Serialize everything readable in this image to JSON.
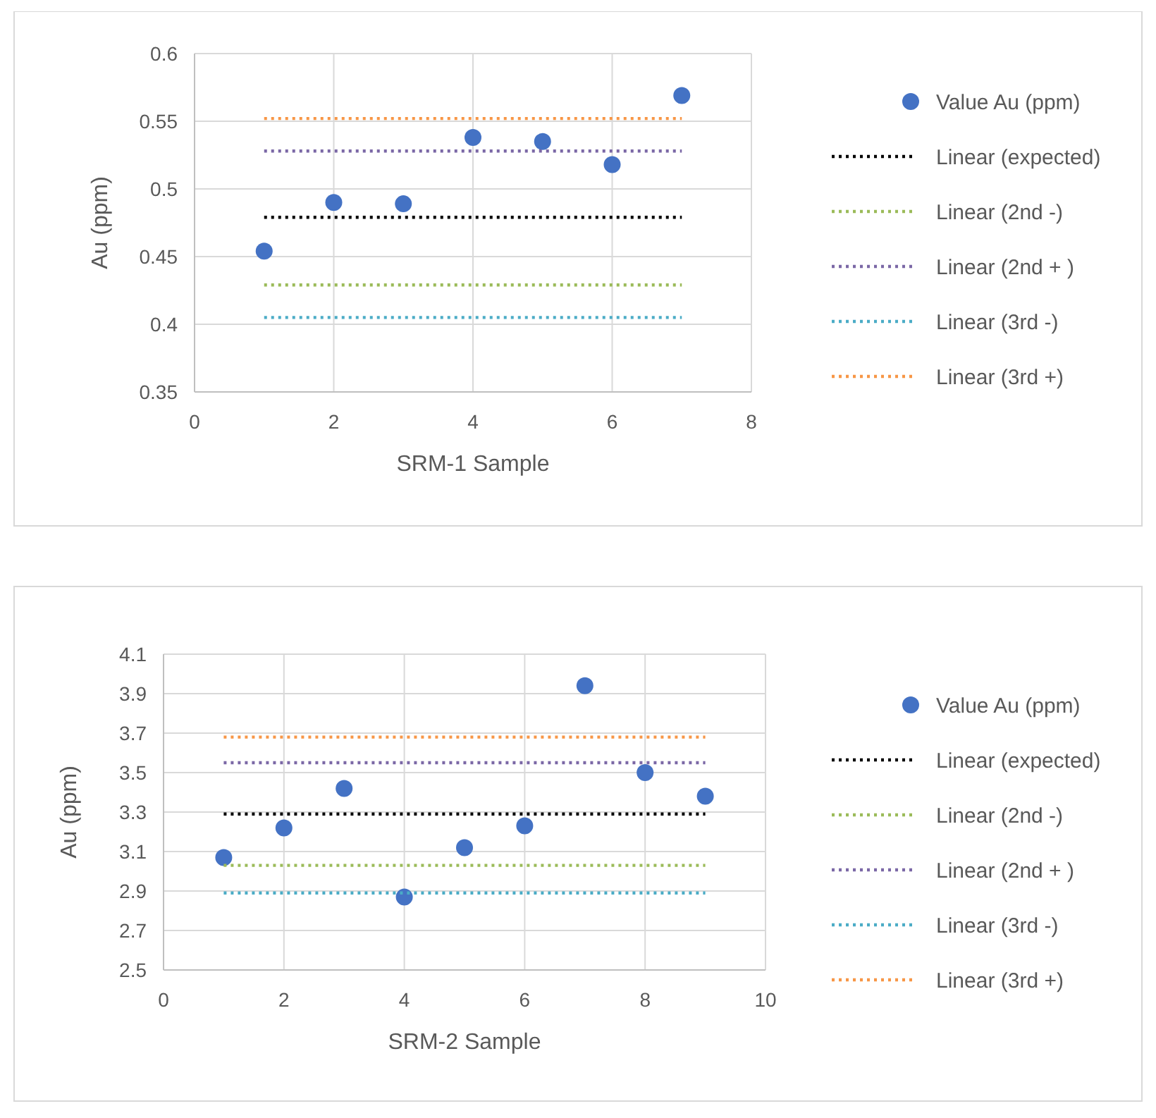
{
  "chart_data": [
    {
      "type": "scatter",
      "xlabel": "SRM-1 Sample",
      "ylabel": "Au (ppm)",
      "xlim": [
        0,
        8
      ],
      "xticks": [
        0,
        2,
        4,
        6,
        8
      ],
      "ylim": [
        0.35,
        0.6
      ],
      "yticks": [
        0.35,
        0.4,
        0.45,
        0.5,
        0.55,
        0.6
      ],
      "grid": true,
      "legend": "right",
      "series": [
        {
          "name": "Value Au (ppm)",
          "marker": "circle",
          "color": "#4472c4",
          "x": [
            1,
            2,
            3,
            4,
            5,
            6,
            7
          ],
          "values": [
            0.454,
            0.49,
            0.489,
            0.538,
            0.535,
            0.518,
            0.569
          ]
        },
        {
          "name": "Linear (expected)",
          "type": "line",
          "marker": "none",
          "line_style": "dotted",
          "color": "#000000",
          "x": [
            1,
            7
          ],
          "values": [
            0.479,
            0.479
          ]
        },
        {
          "name": "Linear (2nd -)",
          "type": "line",
          "marker": "none",
          "line_style": "dotted",
          "color": "#9bbb59",
          "x": [
            1,
            7
          ],
          "values": [
            0.429,
            0.429
          ]
        },
        {
          "name": "Linear (2nd + )",
          "type": "line",
          "marker": "none",
          "line_style": "dotted",
          "color": "#7b68a6",
          "x": [
            1,
            7
          ],
          "values": [
            0.528,
            0.528
          ]
        },
        {
          "name": "Linear (3rd -)",
          "type": "line",
          "marker": "none",
          "line_style": "dotted",
          "color": "#4bacc6",
          "x": [
            1,
            7
          ],
          "values": [
            0.405,
            0.405
          ]
        },
        {
          "name": "Linear (3rd +)",
          "type": "line",
          "marker": "none",
          "line_style": "dotted",
          "color": "#f79646",
          "x": [
            1,
            7
          ],
          "values": [
            0.552,
            0.552
          ]
        }
      ]
    },
    {
      "type": "scatter",
      "xlabel": "SRM-2 Sample",
      "ylabel": "Au (ppm)",
      "xlim": [
        0,
        10
      ],
      "xticks": [
        0,
        2,
        4,
        6,
        8,
        10
      ],
      "ylim": [
        2.5,
        4.1
      ],
      "yticks": [
        2.5,
        2.7,
        2.9,
        3.1,
        3.3,
        3.5,
        3.7,
        3.9,
        4.1
      ],
      "grid": true,
      "legend": "right",
      "series": [
        {
          "name": "Value Au (ppm)",
          "marker": "circle",
          "color": "#4472c4",
          "x": [
            1,
            2,
            3,
            4,
            5,
            6,
            7,
            8,
            9
          ],
          "values": [
            3.07,
            3.22,
            3.42,
            2.87,
            3.12,
            3.23,
            3.94,
            3.5,
            3.38
          ]
        },
        {
          "name": "Linear (expected)",
          "type": "line",
          "marker": "none",
          "line_style": "dotted",
          "color": "#000000",
          "x": [
            1,
            9
          ],
          "values": [
            3.29,
            3.29
          ]
        },
        {
          "name": "Linear (2nd -)",
          "type": "line",
          "marker": "none",
          "line_style": "dotted",
          "color": "#9bbb59",
          "x": [
            1,
            9
          ],
          "values": [
            3.03,
            3.03
          ]
        },
        {
          "name": "Linear (2nd + )",
          "type": "line",
          "marker": "none",
          "line_style": "dotted",
          "color": "#7b68a6",
          "x": [
            1,
            9
          ],
          "values": [
            3.55,
            3.55
          ]
        },
        {
          "name": "Linear (3rd -)",
          "type": "line",
          "marker": "none",
          "line_style": "dotted",
          "color": "#4bacc6",
          "x": [
            1,
            9
          ],
          "values": [
            2.89,
            2.89
          ]
        },
        {
          "name": "Linear (3rd +)",
          "type": "line",
          "marker": "none",
          "line_style": "dotted",
          "color": "#f79646",
          "x": [
            1,
            9
          ],
          "values": [
            3.68,
            3.68
          ]
        }
      ]
    }
  ]
}
